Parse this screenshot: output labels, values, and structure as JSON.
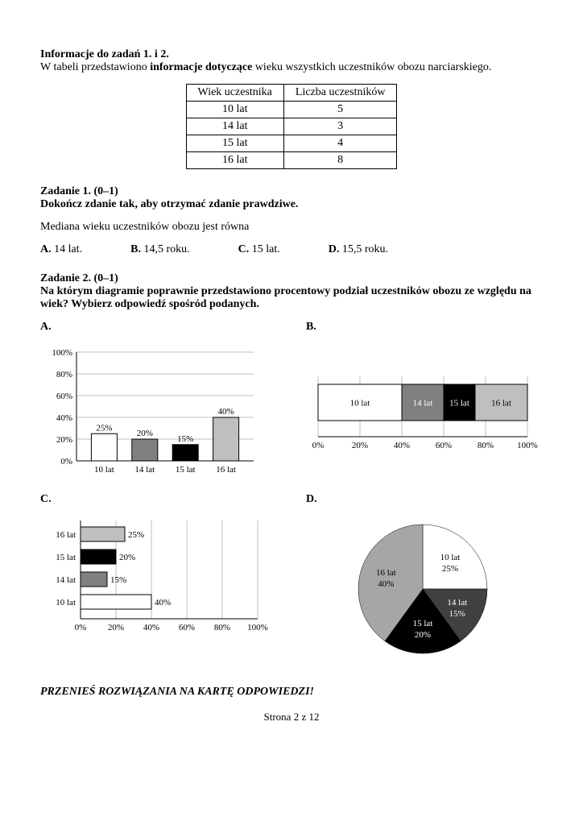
{
  "intro": {
    "heading": "Informacje do zadań 1. i 2.",
    "text_pre": "W tabeli przedstawiono ",
    "text_bold": "informacje dotyczące",
    "text_post": " wieku wszystkich uczestników obozu narciarskiego."
  },
  "table": {
    "col1": "Wiek uczestnika",
    "col2": "Liczba uczestników",
    "rows": [
      {
        "age": "10 lat",
        "count": "5"
      },
      {
        "age": "14 lat",
        "count": "3"
      },
      {
        "age": "15 lat",
        "count": "4"
      },
      {
        "age": "16 lat",
        "count": "8"
      }
    ]
  },
  "task1": {
    "title": "Zadanie 1. (0–1)",
    "prompt": "Dokończ zdanie tak, aby otrzymać zdanie prawdziwe.",
    "question": "Mediana wieku uczestników obozu jest równa",
    "opts": {
      "A": "14 lat.",
      "B": "14,5 roku.",
      "C": "15 lat.",
      "D": "15,5 roku."
    }
  },
  "task2": {
    "title": "Zadanie 2. (0–1)",
    "prompt": "Na którym diagramie poprawnie przedstawiono procentowy podział uczestników obozu ze względu na wiek? Wybierz odpowiedź spośród podanych.",
    "labels": {
      "A": "A.",
      "B": "B.",
      "C": "C.",
      "D": "D."
    }
  },
  "chartA": {
    "type": "bar",
    "y_ticks": [
      "0%",
      "20%",
      "40%",
      "60%",
      "80%",
      "100%"
    ],
    "bars": [
      {
        "label": "10 lat",
        "val": 25,
        "text": "25%",
        "fill": "#ffffff",
        "stroke": "#000"
      },
      {
        "label": "14 lat",
        "val": 20,
        "text": "20%",
        "fill": "#808080",
        "stroke": "#000"
      },
      {
        "label": "15 lat",
        "val": 15,
        "text": "15%",
        "fill": "#000000",
        "stroke": "#000"
      },
      {
        "label": "16 lat",
        "val": 40,
        "text": "40%",
        "fill": "#bfbfbf",
        "stroke": "#000"
      }
    ],
    "grid_color": "#bfbfbf",
    "fontsize": 11
  },
  "chartB": {
    "type": "stacked-horizontal",
    "x_ticks": [
      "0%",
      "20%",
      "40%",
      "60%",
      "80%",
      "100%"
    ],
    "segments": [
      {
        "label": "10 lat",
        "width": 40,
        "fill": "#ffffff",
        "txtcolor": "#000"
      },
      {
        "label": "14 lat",
        "width": 20,
        "fill": "#808080",
        "txtcolor": "#fff"
      },
      {
        "label": "15 lat",
        "width": 15,
        "fill": "#000000",
        "txtcolor": "#fff"
      },
      {
        "label": "16 lat",
        "width": 25,
        "fill": "#bfbfbf",
        "txtcolor": "#000"
      }
    ],
    "grid_color": "#bfbfbf",
    "fontsize": 11
  },
  "chartC": {
    "type": "bar-horizontal",
    "x_ticks": [
      "0%",
      "20%",
      "40%",
      "60%",
      "80%",
      "100%"
    ],
    "bars": [
      {
        "label": "16 lat",
        "val": 25,
        "text": "25%",
        "fill": "#bfbfbf"
      },
      {
        "label": "15 lat",
        "val": 20,
        "text": "20%",
        "fill": "#000000"
      },
      {
        "label": "14 lat",
        "val": 15,
        "text": "15%",
        "fill": "#808080"
      },
      {
        "label": "10 lat",
        "val": 40,
        "text": "40%",
        "fill": "#ffffff"
      }
    ],
    "grid_color": "#bfbfbf",
    "fontsize": 11
  },
  "chartD": {
    "type": "pie",
    "slices": [
      {
        "label": "10 lat",
        "sub": "25%",
        "val": 25,
        "fill": "#ffffff",
        "txtcolor": "#000"
      },
      {
        "label": "14 lat",
        "sub": "15%",
        "val": 15,
        "fill": "#404040",
        "txtcolor": "#fff"
      },
      {
        "label": "15 lat",
        "sub": "20%",
        "val": 20,
        "fill": "#000000",
        "txtcolor": "#fff"
      },
      {
        "label": "16 lat",
        "sub": "40%",
        "val": 40,
        "fill": "#a6a6a6",
        "txtcolor": "#000"
      }
    ],
    "fontsize": 11
  },
  "footer": "PRZENIEŚ ROZWIĄZANIA NA KARTĘ ODPOWIEDZI!",
  "page": "Strona 2 z 12"
}
